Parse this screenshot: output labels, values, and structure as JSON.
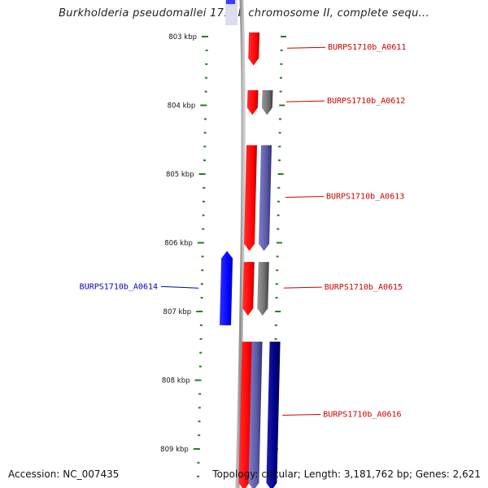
{
  "title": "Burkholderia pseudomallei 1710b chromosome II, complete sequ...",
  "footer": {
    "accession": "Accession: NC_007435",
    "topology": "Topology: circular; Length: 3,181,762 bp; Genes: 2,621"
  },
  "ruler": {
    "ticks": [
      {
        "label": "803 kbp",
        "kbp": 803
      },
      {
        "label": "804 kbp",
        "kbp": 804
      },
      {
        "label": "805 kbp",
        "kbp": 805
      },
      {
        "label": "806 kbp",
        "kbp": 806
      },
      {
        "label": "807 kbp",
        "kbp": 807
      },
      {
        "label": "808 kbp",
        "kbp": 808
      },
      {
        "label": "809 kbp",
        "kbp": 809
      }
    ]
  },
  "genes": [
    {
      "id": "gene-a0611",
      "label": "BURPS1710b_A0611",
      "strand": "+",
      "start_kbp": 802.94,
      "end_kbp": 803.42,
      "tracks": [
        "red"
      ]
    },
    {
      "id": "gene-a0612",
      "label": "BURPS1710b_A0612",
      "strand": "+",
      "start_kbp": 803.78,
      "end_kbp": 804.14,
      "tracks": [
        "red",
        "gray"
      ]
    },
    {
      "id": "gene-a0613",
      "label": "BURPS1710b_A0613",
      "strand": "+",
      "start_kbp": 804.58,
      "end_kbp": 806.12,
      "tracks": [
        "red",
        "purple"
      ]
    },
    {
      "id": "gene-a0614",
      "label": "BURPS1710b_A0614",
      "strand": "-",
      "start_kbp": 806.12,
      "end_kbp": 807.2,
      "tracks": [
        "blue"
      ]
    },
    {
      "id": "gene-a0615",
      "label": "BURPS1710b_A0615",
      "strand": "+",
      "start_kbp": 806.28,
      "end_kbp": 807.06,
      "tracks": [
        "red",
        "gray"
      ]
    },
    {
      "id": "gene-a0616",
      "label": "BURPS1710b_A0616",
      "strand": "+",
      "start_kbp": 807.44,
      "end_kbp": 809.6,
      "tracks": [
        "red",
        "purple",
        "navy"
      ]
    }
  ],
  "colors": {
    "forward_gene": "#ff0000",
    "forward_label": "#cc0000",
    "reverse_gene": "#0000ff",
    "reverse_label": "#0000bb",
    "cog_gray": "#707070",
    "cog_purple": "#5a5aa6",
    "cog_navy": "#00008a",
    "backbone": "#909090",
    "ruler": "#2a7a2a"
  }
}
